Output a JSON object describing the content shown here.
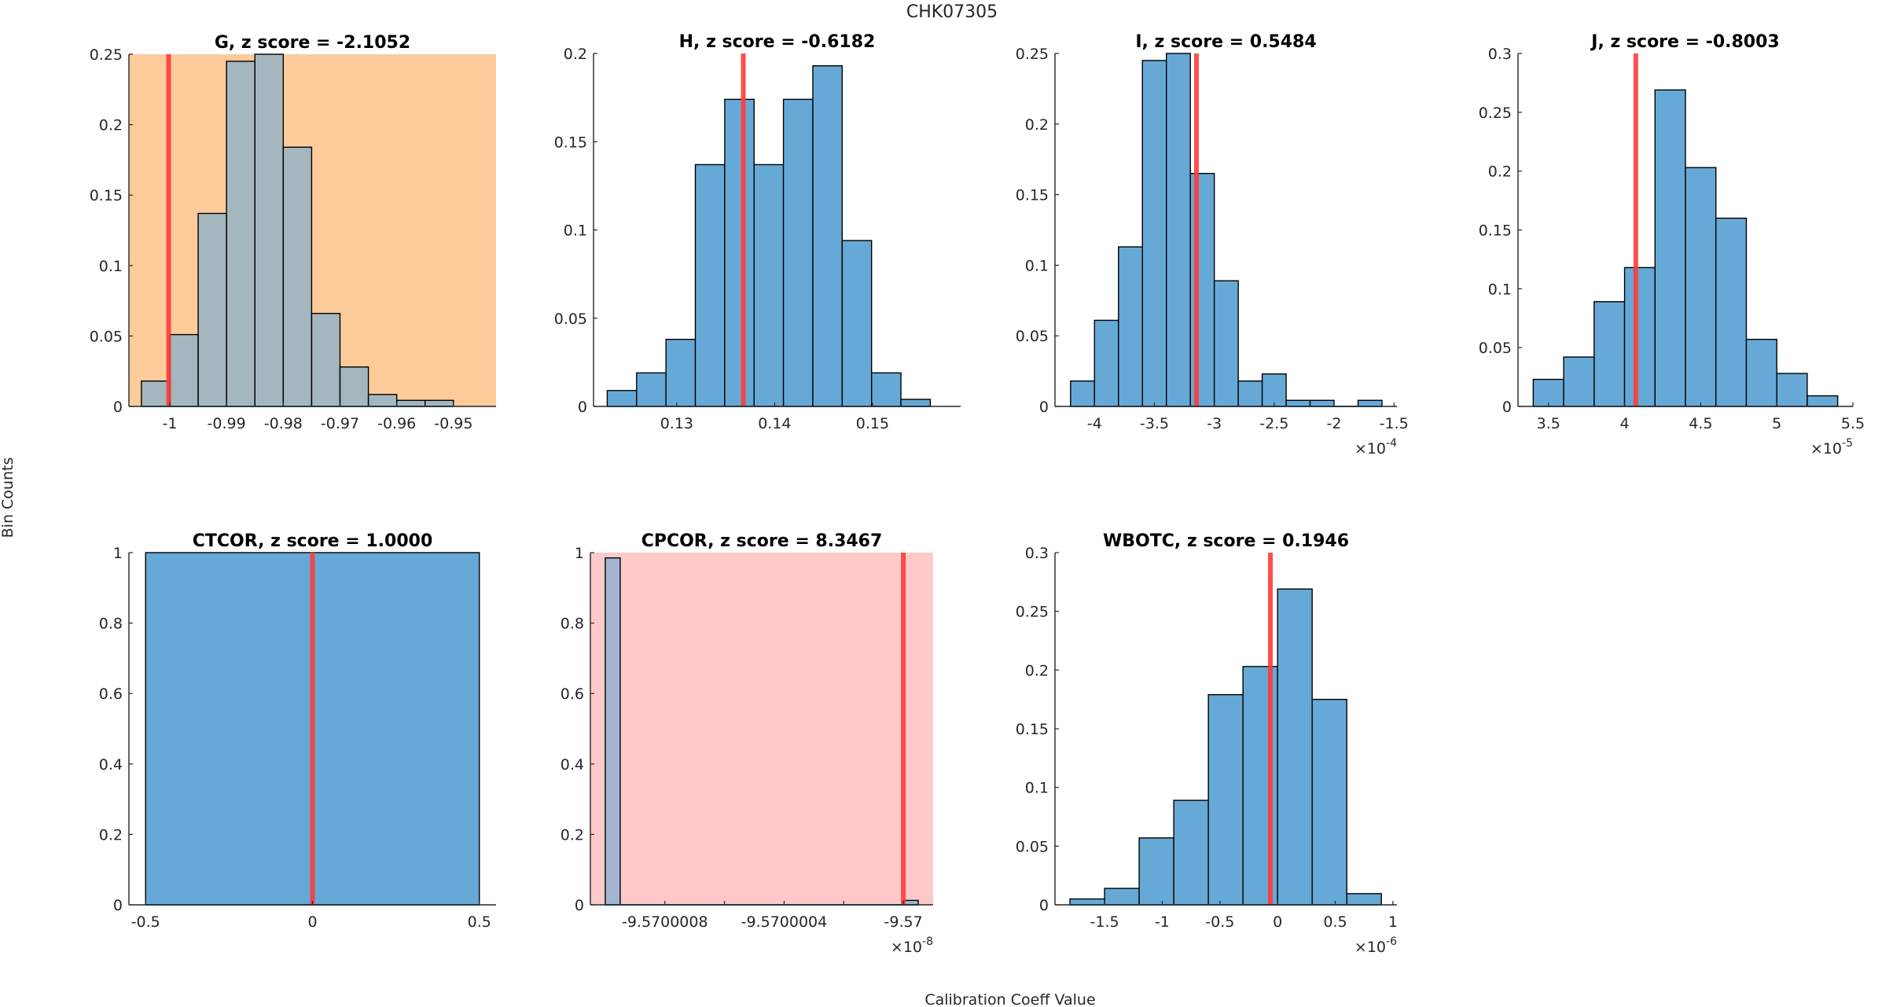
{
  "figure": {
    "title": "CHK07305",
    "ylabel": "Bin Counts",
    "xlabel": "Calibration Coeff Value"
  },
  "colors": {
    "bar_fill": "#67a9d6",
    "bar_edge": "#000000",
    "ref_line": "#ff3b3b",
    "warn_background": "#fecb9b",
    "alert_background": "#fdcaca"
  },
  "chart_data": [
    {
      "type": "bar",
      "title": "G, z score = -2.1052",
      "coefficient": "G",
      "z_score": -2.1052,
      "background": "warn",
      "bin_edges": [
        -1.005,
        -1.0,
        -0.995,
        -0.99,
        -0.985,
        -0.98,
        -0.975,
        -0.97,
        -0.965,
        -0.96,
        -0.955,
        -0.95
      ],
      "values": [
        0.018,
        0.051,
        0.137,
        0.245,
        0.25,
        0.184,
        0.066,
        0.028,
        0.0085,
        0.0043,
        0.0043
      ],
      "ref_value": -1.0002,
      "xlim": [
        -1.0072,
        -0.9425
      ],
      "ylim": [
        0,
        0.25
      ],
      "xticks": [
        -1,
        -0.99,
        -0.98,
        -0.97,
        -0.96,
        -0.95
      ],
      "xtick_labels": [
        "-1",
        "-0.99",
        "-0.98",
        "-0.97",
        "-0.96",
        "-0.95"
      ],
      "yticks": [
        0,
        0.05,
        0.1,
        0.15,
        0.2,
        0.25
      ],
      "ytick_labels": [
        "0",
        "0.05",
        "0.1",
        "0.15",
        "0.2",
        "0.25"
      ],
      "x_exponent": ""
    },
    {
      "type": "bar",
      "title": "H, z score = -0.6182",
      "coefficient": "H",
      "z_score": -0.6182,
      "background": "none",
      "bin_edges": [
        0.1229,
        0.1259,
        0.1289,
        0.1319,
        0.1349,
        0.1379,
        0.1409,
        0.1439,
        0.1469,
        0.1499,
        0.1529,
        0.1559
      ],
      "values": [
        0.009,
        0.019,
        0.038,
        0.137,
        0.174,
        0.137,
        0.174,
        0.193,
        0.094,
        0.019,
        0.004
      ],
      "ref_value": 0.1368,
      "xlim": [
        0.1215,
        0.159
      ],
      "ylim": [
        0,
        0.2
      ],
      "xticks": [
        0.13,
        0.14,
        0.15
      ],
      "xtick_labels": [
        "0.13",
        "0.14",
        "0.15"
      ],
      "yticks": [
        0,
        0.05,
        0.1,
        0.15,
        0.2
      ],
      "ytick_labels": [
        "0",
        "0.05",
        "0.1",
        "0.15",
        "0.2"
      ],
      "x_exponent": ""
    },
    {
      "type": "bar",
      "title": "I, z score = 0.5484",
      "coefficient": "I",
      "z_score": 0.5484,
      "background": "none",
      "bin_edges": [
        -4.2,
        -4.0,
        -3.8,
        -3.6,
        -3.4,
        -3.2,
        -3.0,
        -2.8,
        -2.6,
        -2.4,
        -2.2,
        -2.0,
        -1.8,
        -1.6
      ],
      "values": [
        0.018,
        0.061,
        0.113,
        0.245,
        0.25,
        0.165,
        0.089,
        0.018,
        0.023,
        0.0043,
        0.0043,
        0,
        0.0043
      ],
      "ref_value": -3.149,
      "xlim": [
        -4.33,
        -1.475
      ],
      "ylim": [
        0,
        0.25
      ],
      "xticks": [
        -4,
        -3.5,
        -3,
        -2.5,
        -2,
        -1.5
      ],
      "xtick_labels": [
        "-4",
        "-3.5",
        "-3",
        "-2.5",
        "-2",
        "-1.5"
      ],
      "yticks": [
        0,
        0.05,
        0.1,
        0.15,
        0.2,
        0.25
      ],
      "ytick_labels": [
        "0",
        "0.05",
        "0.1",
        "0.15",
        "0.2",
        "0.25"
      ],
      "x_exponent": "-4"
    },
    {
      "type": "bar",
      "title": "J, z score = -0.8003",
      "coefficient": "J",
      "z_score": -0.8003,
      "background": "none",
      "bin_edges": [
        3.4,
        3.6,
        3.8,
        4.0,
        4.2,
        4.4,
        4.6,
        4.8,
        5.0,
        5.2,
        5.4
      ],
      "values": [
        0.023,
        0.042,
        0.089,
        0.118,
        0.269,
        0.203,
        0.16,
        0.057,
        0.028,
        0.009
      ],
      "ref_value": 4.074,
      "xlim": [
        3.3,
        5.5
      ],
      "ylim": [
        0,
        0.3
      ],
      "xticks": [
        3.5,
        4,
        4.5,
        5,
        5.5
      ],
      "xtick_labels": [
        "3.5",
        "4",
        "4.5",
        "5",
        "5.5"
      ],
      "yticks": [
        0,
        0.05,
        0.1,
        0.15,
        0.2,
        0.25,
        0.3
      ],
      "ytick_labels": [
        "0",
        "0.05",
        "0.1",
        "0.15",
        "0.2",
        "0.25",
        "0.3"
      ],
      "x_exponent": "-5"
    },
    {
      "type": "bar",
      "title": "CTCOR, z score = 1.0000",
      "coefficient": "CTCOR",
      "z_score": 1.0,
      "background": "none",
      "bin_edges": [
        -0.5,
        0.5
      ],
      "values": [
        1.0
      ],
      "ref_value": 0,
      "xlim": [
        -0.55,
        0.55
      ],
      "ylim": [
        0,
        1
      ],
      "xticks": [
        -0.5,
        0,
        0.5
      ],
      "xtick_labels": [
        "-0.5",
        "0",
        "0.5"
      ],
      "yticks": [
        0,
        0.2,
        0.4,
        0.6,
        0.8,
        1
      ],
      "ytick_labels": [
        "0",
        "0.2",
        "0.4",
        "0.6",
        "0.8",
        "1"
      ],
      "x_exponent": ""
    },
    {
      "type": "bar",
      "title": "CPCOR, z score = 8.3467",
      "coefficient": "CPCOR",
      "z_score": 8.3467,
      "background": "alert",
      "bin_edges": [
        -9.570001,
        -9.57000095,
        -9.57,
        -9.56999995
      ],
      "values": [
        0.985,
        0,
        0.0125
      ],
      "ref_value": -9.57,
      "xlim": [
        -9.57000105,
        -9.5699999
      ],
      "ylim": [
        0,
        1
      ],
      "xticks": [
        -9.5700008,
        -9.5700006,
        -9.5700004,
        -9.5700002,
        -9.57
      ],
      "xtick_labels": [
        "-9.5700008",
        "",
        "-9.5700004",
        "",
        "-9.57"
      ],
      "yticks": [
        0,
        0.2,
        0.4,
        0.6,
        0.8,
        1
      ],
      "ytick_labels": [
        "0",
        "0.2",
        "0.4",
        "0.6",
        "0.8",
        "1"
      ],
      "x_exponent": "-8"
    },
    {
      "type": "bar",
      "title": "WBOTC, z score = 0.1946",
      "coefficient": "WBOTC",
      "z_score": 0.1946,
      "background": "none",
      "bin_edges": [
        -1.8,
        -1.5,
        -1.2,
        -0.9,
        -0.6,
        -0.3,
        0,
        0.3,
        0.6,
        0.9
      ],
      "values": [
        0.005,
        0.014,
        0.057,
        0.089,
        0.179,
        0.203,
        0.269,
        0.175,
        0.0095
      ],
      "ref_value": -0.0625,
      "xlim": [
        -1.93,
        1.035
      ],
      "ylim": [
        0,
        0.3
      ],
      "xticks": [
        -1.5,
        -1,
        -0.5,
        0,
        0.5,
        1
      ],
      "xtick_labels": [
        "-1.5",
        "-1",
        "-0.5",
        "0",
        "0.5",
        "1"
      ],
      "yticks": [
        0,
        0.05,
        0.1,
        0.15,
        0.2,
        0.25,
        0.3
      ],
      "ytick_labels": [
        "0",
        "0.05",
        "0.1",
        "0.15",
        "0.2",
        "0.25",
        "0.3"
      ],
      "x_exponent": "-6"
    }
  ]
}
